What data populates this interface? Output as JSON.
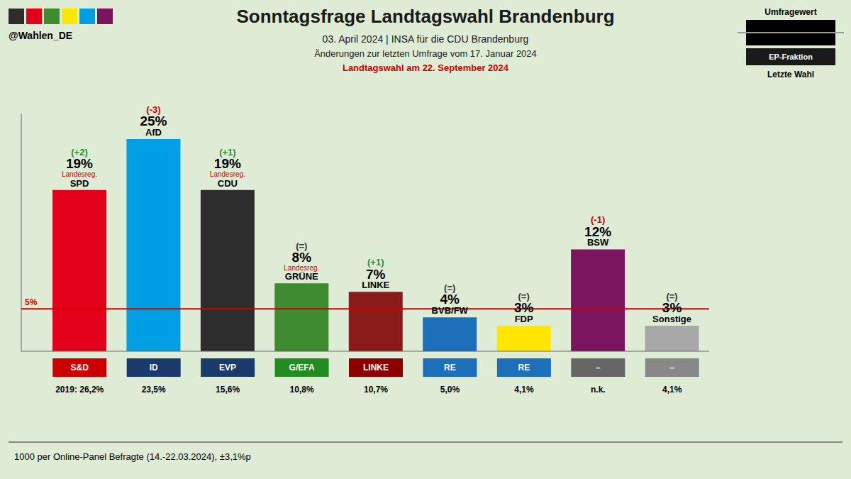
{
  "chart_data": {
    "type": "bar",
    "title": "Sonntagsfrage Landtagswahl Brandenburg",
    "title_color": "#1a1a1a",
    "subtitle": "03. April 2024 | INSA für die CDU Brandenburg",
    "subtitle2": "Änderungen zur letzten Umfrage vom 17. Januar 2024",
    "subtitle3": "Landtagswahl am 22. September 2024",
    "subtitle3_color": "#cc0000",
    "footnote": "1000 per Online-Panel Befragte (14.-22.03.2024), ±3,1%p",
    "background_color": "#deebd5",
    "categories": [
      "SPD",
      "AfD",
      "CDU",
      "GRÜNE",
      "LINKE",
      "BVB/FW",
      "FDP",
      "BSW",
      "Sonstige"
    ],
    "values": [
      19,
      25,
      19,
      8,
      7,
      4,
      3,
      12,
      3
    ],
    "value_labels": [
      "19%",
      "25%",
      "19%",
      "8%",
      "7%",
      "4%",
      "3%",
      "12%",
      "3%"
    ],
    "data_labels": true,
    "colors": [
      "#e2001a",
      "#009fe3",
      "#2d2d2d",
      "#3d8c2f",
      "#8b1a1a",
      "#1e6fba",
      "#ffe600",
      "#7b1560",
      "#a8a8a8"
    ],
    "change_labels": [
      "(+2)",
      "(-3)",
      "(+1)",
      "(=)",
      "(+1)",
      "(=)",
      "(=)",
      "(-1)",
      "(=)"
    ],
    "change_colors": [
      "#2d8c2d",
      "#cc0000",
      "#2d8c2d",
      "#333333",
      "#2d8c2d",
      "#333333",
      "#333333",
      "#cc0000",
      "#333333"
    ],
    "landesreg_labels": [
      "Landesreg.",
      null,
      "Landesreg.",
      "Landesreg.",
      null,
      null,
      null,
      null,
      null
    ],
    "landesreg_color": "#cc0000",
    "ep_fraction_labels": [
      "S&D",
      "ID",
      "EVP",
      "G/EFA",
      "LINKE",
      "RE",
      "RE",
      "–",
      "–"
    ],
    "ep_fraction_colors": [
      "#cc0000",
      "#1a3a6b",
      "#1a3a6b",
      "#228B22",
      "#8B0000",
      "#1e6fba",
      "#1e6fba",
      "#666666",
      "#888888"
    ],
    "last_election_labels": [
      "2019: 26,2%",
      "23,5%",
      "15,6%",
      "10,8%",
      "10,7%",
      "5,0%",
      "4,1%",
      "n.k.",
      "4,1%"
    ],
    "threshold": {
      "value": 5,
      "label": "5%",
      "color": "#cc0000"
    },
    "ylim": [
      0,
      28
    ],
    "tick_labels": false,
    "grid": false,
    "legend_labels": [
      "Umfragewert",
      "EP-Fraktion",
      "Letzte Wahl"
    ],
    "handle": "@Wahlen_DE",
    "handle_colors": [
      "#2d2d2d",
      "#e2001a",
      "#3d8c2f",
      "#ffe600",
      "#009fe3",
      "#7b1560"
    ]
  }
}
